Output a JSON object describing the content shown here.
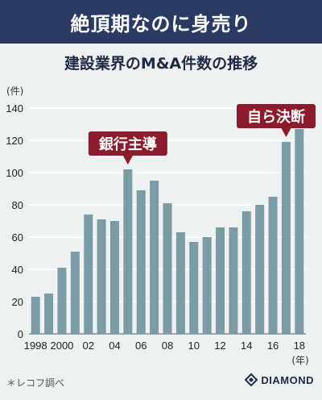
{
  "header": {
    "title": "絶頂期なのに身売り"
  },
  "chart_data": {
    "type": "bar",
    "title": "建設業界のM&A件数の推移",
    "ylabel": "(件)",
    "xunit": "(年)",
    "ylim": [
      0,
      140
    ],
    "yticks": [
      0,
      20,
      40,
      60,
      80,
      100,
      120,
      140
    ],
    "grid": true,
    "categories": [
      "1998",
      "1999",
      "2000",
      "2001",
      "2002",
      "2003",
      "2004",
      "2005",
      "2006",
      "2007",
      "2008",
      "2009",
      "2010",
      "2011",
      "2012",
      "2013",
      "2014",
      "2015",
      "2016",
      "2017",
      "2018"
    ],
    "tick_labels": [
      "1998",
      "",
      "2000",
      "",
      "02",
      "",
      "04",
      "",
      "06",
      "",
      "08",
      "",
      "10",
      "",
      "12",
      "",
      "14",
      "",
      "16",
      "",
      "18"
    ],
    "values": [
      23,
      25,
      41,
      51,
      74,
      71,
      70,
      102,
      89,
      95,
      81,
      63,
      57,
      60,
      66,
      66,
      76,
      80,
      85,
      119,
      127
    ],
    "bar_color": "#7b9ca4",
    "annotations": [
      {
        "text": "銀行主導",
        "category": "2005"
      },
      {
        "text": "自ら決断",
        "category": "2017"
      }
    ],
    "annotation_color": "#8c1c2c"
  },
  "footer": {
    "source": "＊レコフ調べ",
    "brand": "DIAMOND"
  }
}
